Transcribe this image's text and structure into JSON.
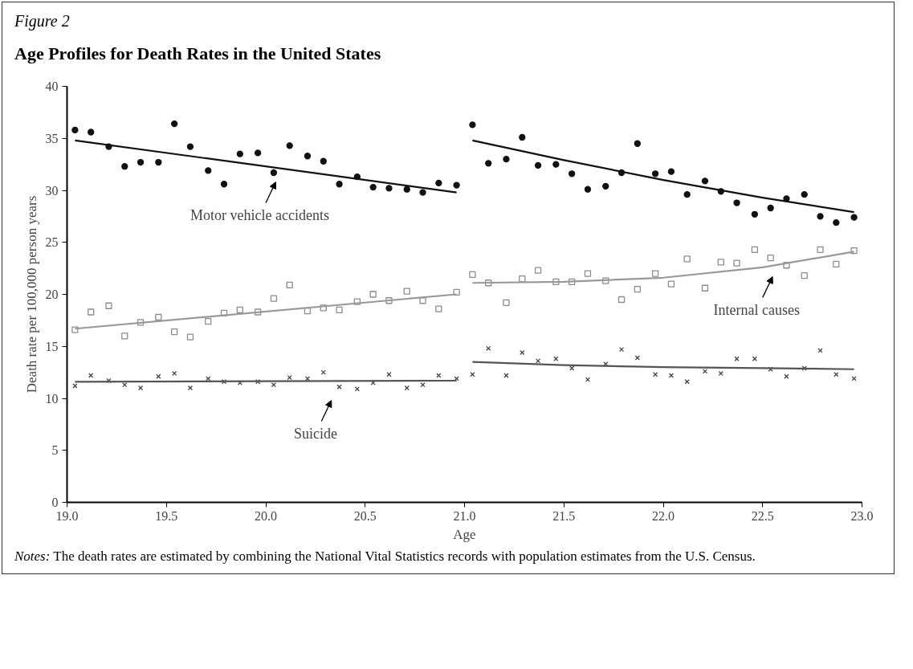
{
  "chart_data": {
    "type": "scatter",
    "title": "Figure 2",
    "subtitle": "Age Profiles for Death Rates in the United States",
    "xlabel": "Age",
    "ylabel": "Death rate per 100,000 person years",
    "xlim": [
      19,
      23
    ],
    "ylim": [
      0,
      40
    ],
    "xticks": [
      {
        "value": 19,
        "label": "19.0"
      },
      {
        "value": 19.5,
        "label": "19.5"
      },
      {
        "value": 20,
        "label": "20.0"
      },
      {
        "value": 20.5,
        "label": "20.5"
      },
      {
        "value": 21,
        "label": "21.0"
      },
      {
        "value": 21.5,
        "label": "21.5"
      },
      {
        "value": 22,
        "label": "22.0"
      },
      {
        "value": 22.5,
        "label": "22.5"
      },
      {
        "value": 23,
        "label": "23.0"
      }
    ],
    "yticks": [
      0,
      5,
      10,
      15,
      20,
      25,
      30,
      35,
      40
    ],
    "grid": false,
    "x": [
      19.04,
      19.12,
      19.21,
      19.29,
      19.37,
      19.46,
      19.54,
      19.62,
      19.71,
      19.79,
      19.87,
      19.96,
      20.04,
      20.12,
      20.21,
      20.29,
      20.37,
      20.46,
      20.54,
      20.62,
      20.71,
      20.79,
      20.87,
      20.96,
      21.04,
      21.12,
      21.21,
      21.29,
      21.37,
      21.46,
      21.54,
      21.62,
      21.71,
      21.79,
      21.87,
      21.96,
      22.04,
      22.12,
      22.21,
      22.29,
      22.37,
      22.46,
      22.54,
      22.62,
      22.71,
      22.79,
      22.87,
      22.96
    ],
    "series": [
      {
        "marker": "circle",
        "color": "#111111",
        "values": [
          35.8,
          35.6,
          34.2,
          32.3,
          32.7,
          32.7,
          36.4,
          34.2,
          31.9,
          30.6,
          33.5,
          33.6,
          31.7,
          34.3,
          33.3,
          32.8,
          30.6,
          31.3,
          30.3,
          30.2,
          30.1,
          29.8,
          30.7,
          30.5,
          36.3,
          32.6,
          33.0,
          35.1,
          32.4,
          32.5,
          31.6,
          30.1,
          30.4,
          31.7,
          34.5,
          31.6,
          31.8,
          29.6,
          30.9,
          29.9,
          28.8,
          27.7,
          28.3,
          29.2,
          29.6,
          27.5,
          26.9,
          27.4
        ]
      },
      {
        "marker": "square",
        "color": "#8c8c8c",
        "values": [
          16.6,
          18.3,
          18.9,
          16.0,
          17.3,
          17.8,
          16.4,
          15.9,
          17.4,
          18.2,
          18.5,
          18.3,
          19.6,
          20.9,
          18.4,
          18.7,
          18.5,
          19.3,
          20.0,
          19.4,
          20.3,
          19.4,
          18.6,
          20.2,
          21.9,
          21.1,
          19.2,
          21.5,
          22.3,
          21.2,
          21.2,
          22.0,
          21.3,
          19.5,
          20.5,
          22.0,
          21.0,
          23.4,
          20.6,
          23.1,
          23.0,
          24.3,
          23.5,
          22.8,
          21.8,
          24.3,
          22.9,
          24.2
        ]
      },
      {
        "marker": "cross",
        "color": "#444444",
        "values": [
          11.2,
          12.2,
          11.7,
          11.3,
          11.0,
          12.1,
          12.4,
          11.0,
          11.9,
          11.6,
          11.5,
          11.6,
          11.3,
          12.0,
          11.9,
          12.5,
          11.1,
          10.9,
          11.5,
          12.3,
          11.0,
          11.3,
          12.2,
          11.9,
          12.3,
          14.8,
          12.2,
          14.4,
          13.6,
          13.8,
          12.9,
          11.8,
          13.3,
          14.7,
          13.9,
          12.3,
          12.2,
          11.6,
          12.6,
          12.4,
          13.8,
          13.8,
          12.8,
          12.1,
          12.9,
          14.6,
          12.3,
          11.9
        ]
      },
      {
        "type": "line",
        "color": "#111111",
        "x": [
          19.04,
          20.96
        ],
        "values": [
          34.8,
          29.8
        ]
      },
      {
        "type": "line",
        "color": "#111111",
        "x": [
          21.04,
          21.5,
          22.0,
          22.5,
          22.96
        ],
        "values": [
          34.8,
          32.9,
          31.0,
          29.3,
          27.9
        ]
      },
      {
        "type": "line",
        "color": "#999999",
        "x": [
          19.04,
          20.96
        ],
        "values": [
          16.7,
          20.0
        ]
      },
      {
        "type": "line",
        "color": "#999999",
        "x": [
          21.04,
          21.5,
          22.0,
          22.5,
          22.96
        ],
        "values": [
          21.1,
          21.2,
          21.6,
          22.6,
          24.1
        ]
      },
      {
        "type": "line",
        "color": "#555555",
        "x": [
          19.04,
          20.96
        ],
        "values": [
          11.6,
          11.7
        ]
      },
      {
        "type": "line",
        "color": "#555555",
        "x": [
          21.04,
          21.5,
          22.0,
          22.5,
          22.96
        ],
        "values": [
          13.5,
          13.2,
          13.0,
          12.9,
          12.8
        ]
      }
    ],
    "annotations": [
      "Motor vehicle accidents",
      "Internal causes",
      "Suicide",
      "Notes: The death rates are estimated by combining the National Vital Statistics records with population estimates from the U.S. Census."
    ]
  }
}
